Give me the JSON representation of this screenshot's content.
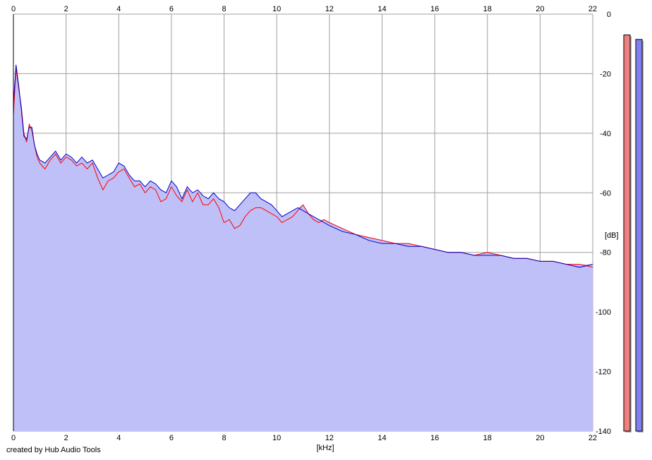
{
  "credit": "created by Hub Audio Tools",
  "colors": {
    "plot_bg": "#ffffff",
    "fill": "#c0c0f8",
    "grid": "#a0a0a0",
    "series_left": "#ff0000",
    "series_right": "#0000c8",
    "meter_left": "#f08080",
    "meter_right": "#8080f0"
  },
  "chart_data": {
    "type": "area",
    "title": "",
    "xlabel": "[kHz]",
    "ylabel": "[dB]",
    "xlim": [
      0,
      22
    ],
    "ylim": [
      -140,
      0
    ],
    "x_ticks": [
      "0",
      "2",
      "4",
      "6",
      "8",
      "10",
      "12",
      "14",
      "16",
      "18",
      "20",
      "22"
    ],
    "y_ticks": [
      "0",
      "-20",
      "-40",
      "-60",
      "-80",
      "-100",
      "-120",
      "-140"
    ],
    "grid": true,
    "legend": "none",
    "series": [
      {
        "color": "red",
        "x": [
          0,
          0.1,
          0.2,
          0.3,
          0.4,
          0.5,
          0.6,
          0.7,
          0.8,
          0.9,
          1,
          1.2,
          1.4,
          1.6,
          1.8,
          2,
          2.2,
          2.4,
          2.6,
          2.8,
          3,
          3.2,
          3.4,
          3.6,
          3.8,
          4,
          4.2,
          4.4,
          4.6,
          4.8,
          5,
          5.2,
          5.4,
          5.6,
          5.8,
          6,
          6.2,
          6.4,
          6.6,
          6.8,
          7,
          7.2,
          7.4,
          7.6,
          7.8,
          8,
          8.2,
          8.4,
          8.6,
          8.8,
          9,
          9.2,
          9.4,
          9.6,
          9.8,
          10,
          10.2,
          10.4,
          10.6,
          10.8,
          11,
          11.2,
          11.4,
          11.6,
          11.8,
          12,
          12.5,
          13,
          13.5,
          14,
          14.5,
          15,
          15.5,
          16,
          16.5,
          17,
          17.5,
          18,
          18.5,
          19,
          19.5,
          20,
          20.5,
          21,
          21.5,
          22
        ],
        "y": [
          -34,
          -18,
          -25,
          -31,
          -40,
          -43,
          -37,
          -39,
          -44,
          -48,
          -50,
          -52,
          -49,
          -47,
          -50,
          -48,
          -49,
          -51,
          -50,
          -52,
          -50,
          -55,
          -59,
          -56,
          -55,
          -53,
          -52,
          -55,
          -58,
          -57,
          -60,
          -58,
          -59,
          -63,
          -62,
          -58,
          -61,
          -63,
          -59,
          -63,
          -60,
          -64,
          -64,
          -62,
          -65,
          -70,
          -69,
          -72,
          -71,
          -68,
          -66,
          -65,
          -65,
          -66,
          -67,
          -68,
          -70,
          -69,
          -68,
          -66,
          -64,
          -67,
          -69,
          -70,
          -69,
          -70,
          -72,
          -74,
          -75,
          -76,
          -77,
          -77,
          -78,
          -79,
          -80,
          -80,
          -81,
          -80,
          -81,
          -82,
          -82,
          -83,
          -83,
          -84,
          -84,
          -85
        ]
      },
      {
        "color": "blue",
        "x": [
          0,
          0.1,
          0.2,
          0.3,
          0.4,
          0.5,
          0.6,
          0.7,
          0.8,
          0.9,
          1,
          1.2,
          1.4,
          1.6,
          1.8,
          2,
          2.2,
          2.4,
          2.6,
          2.8,
          3,
          3.2,
          3.4,
          3.6,
          3.8,
          4,
          4.2,
          4.4,
          4.6,
          4.8,
          5,
          5.2,
          5.4,
          5.6,
          5.8,
          6,
          6.2,
          6.4,
          6.6,
          6.8,
          7,
          7.2,
          7.4,
          7.6,
          7.8,
          8,
          8.2,
          8.4,
          8.6,
          8.8,
          9,
          9.2,
          9.4,
          9.6,
          9.8,
          10,
          10.2,
          10.4,
          10.6,
          10.8,
          11,
          11.2,
          11.4,
          11.6,
          11.8,
          12,
          12.5,
          13,
          13.5,
          14,
          14.5,
          15,
          15.5,
          16,
          16.5,
          17,
          17.5,
          18,
          18.5,
          19,
          19.5,
          20,
          20.5,
          21,
          21.5,
          22
        ],
        "y": [
          -30,
          -17,
          -24,
          -32,
          -41,
          -42,
          -38,
          -38,
          -44,
          -47,
          -49,
          -50,
          -48,
          -46,
          -49,
          -47,
          -48,
          -50,
          -48,
          -50,
          -49,
          -52,
          -55,
          -54,
          -53,
          -50,
          -51,
          -54,
          -56,
          -56,
          -58,
          -56,
          -57,
          -59,
          -60,
          -56,
          -58,
          -62,
          -58,
          -60,
          -59,
          -61,
          -62,
          -60,
          -62,
          -63,
          -65,
          -66,
          -64,
          -62,
          -60,
          -60,
          -62,
          -63,
          -64,
          -66,
          -68,
          -67,
          -66,
          -65,
          -66,
          -67,
          -68,
          -69,
          -70,
          -71,
          -73,
          -74,
          -76,
          -77,
          -77,
          -78,
          -78,
          -79,
          -80,
          -80,
          -81,
          -81,
          -81,
          -82,
          -82,
          -83,
          -83,
          -84,
          -85,
          -84
        ]
      }
    ],
    "meters": [
      {
        "channel": "left",
        "level_db": -7
      },
      {
        "channel": "right",
        "level_db": -8.5
      }
    ]
  }
}
